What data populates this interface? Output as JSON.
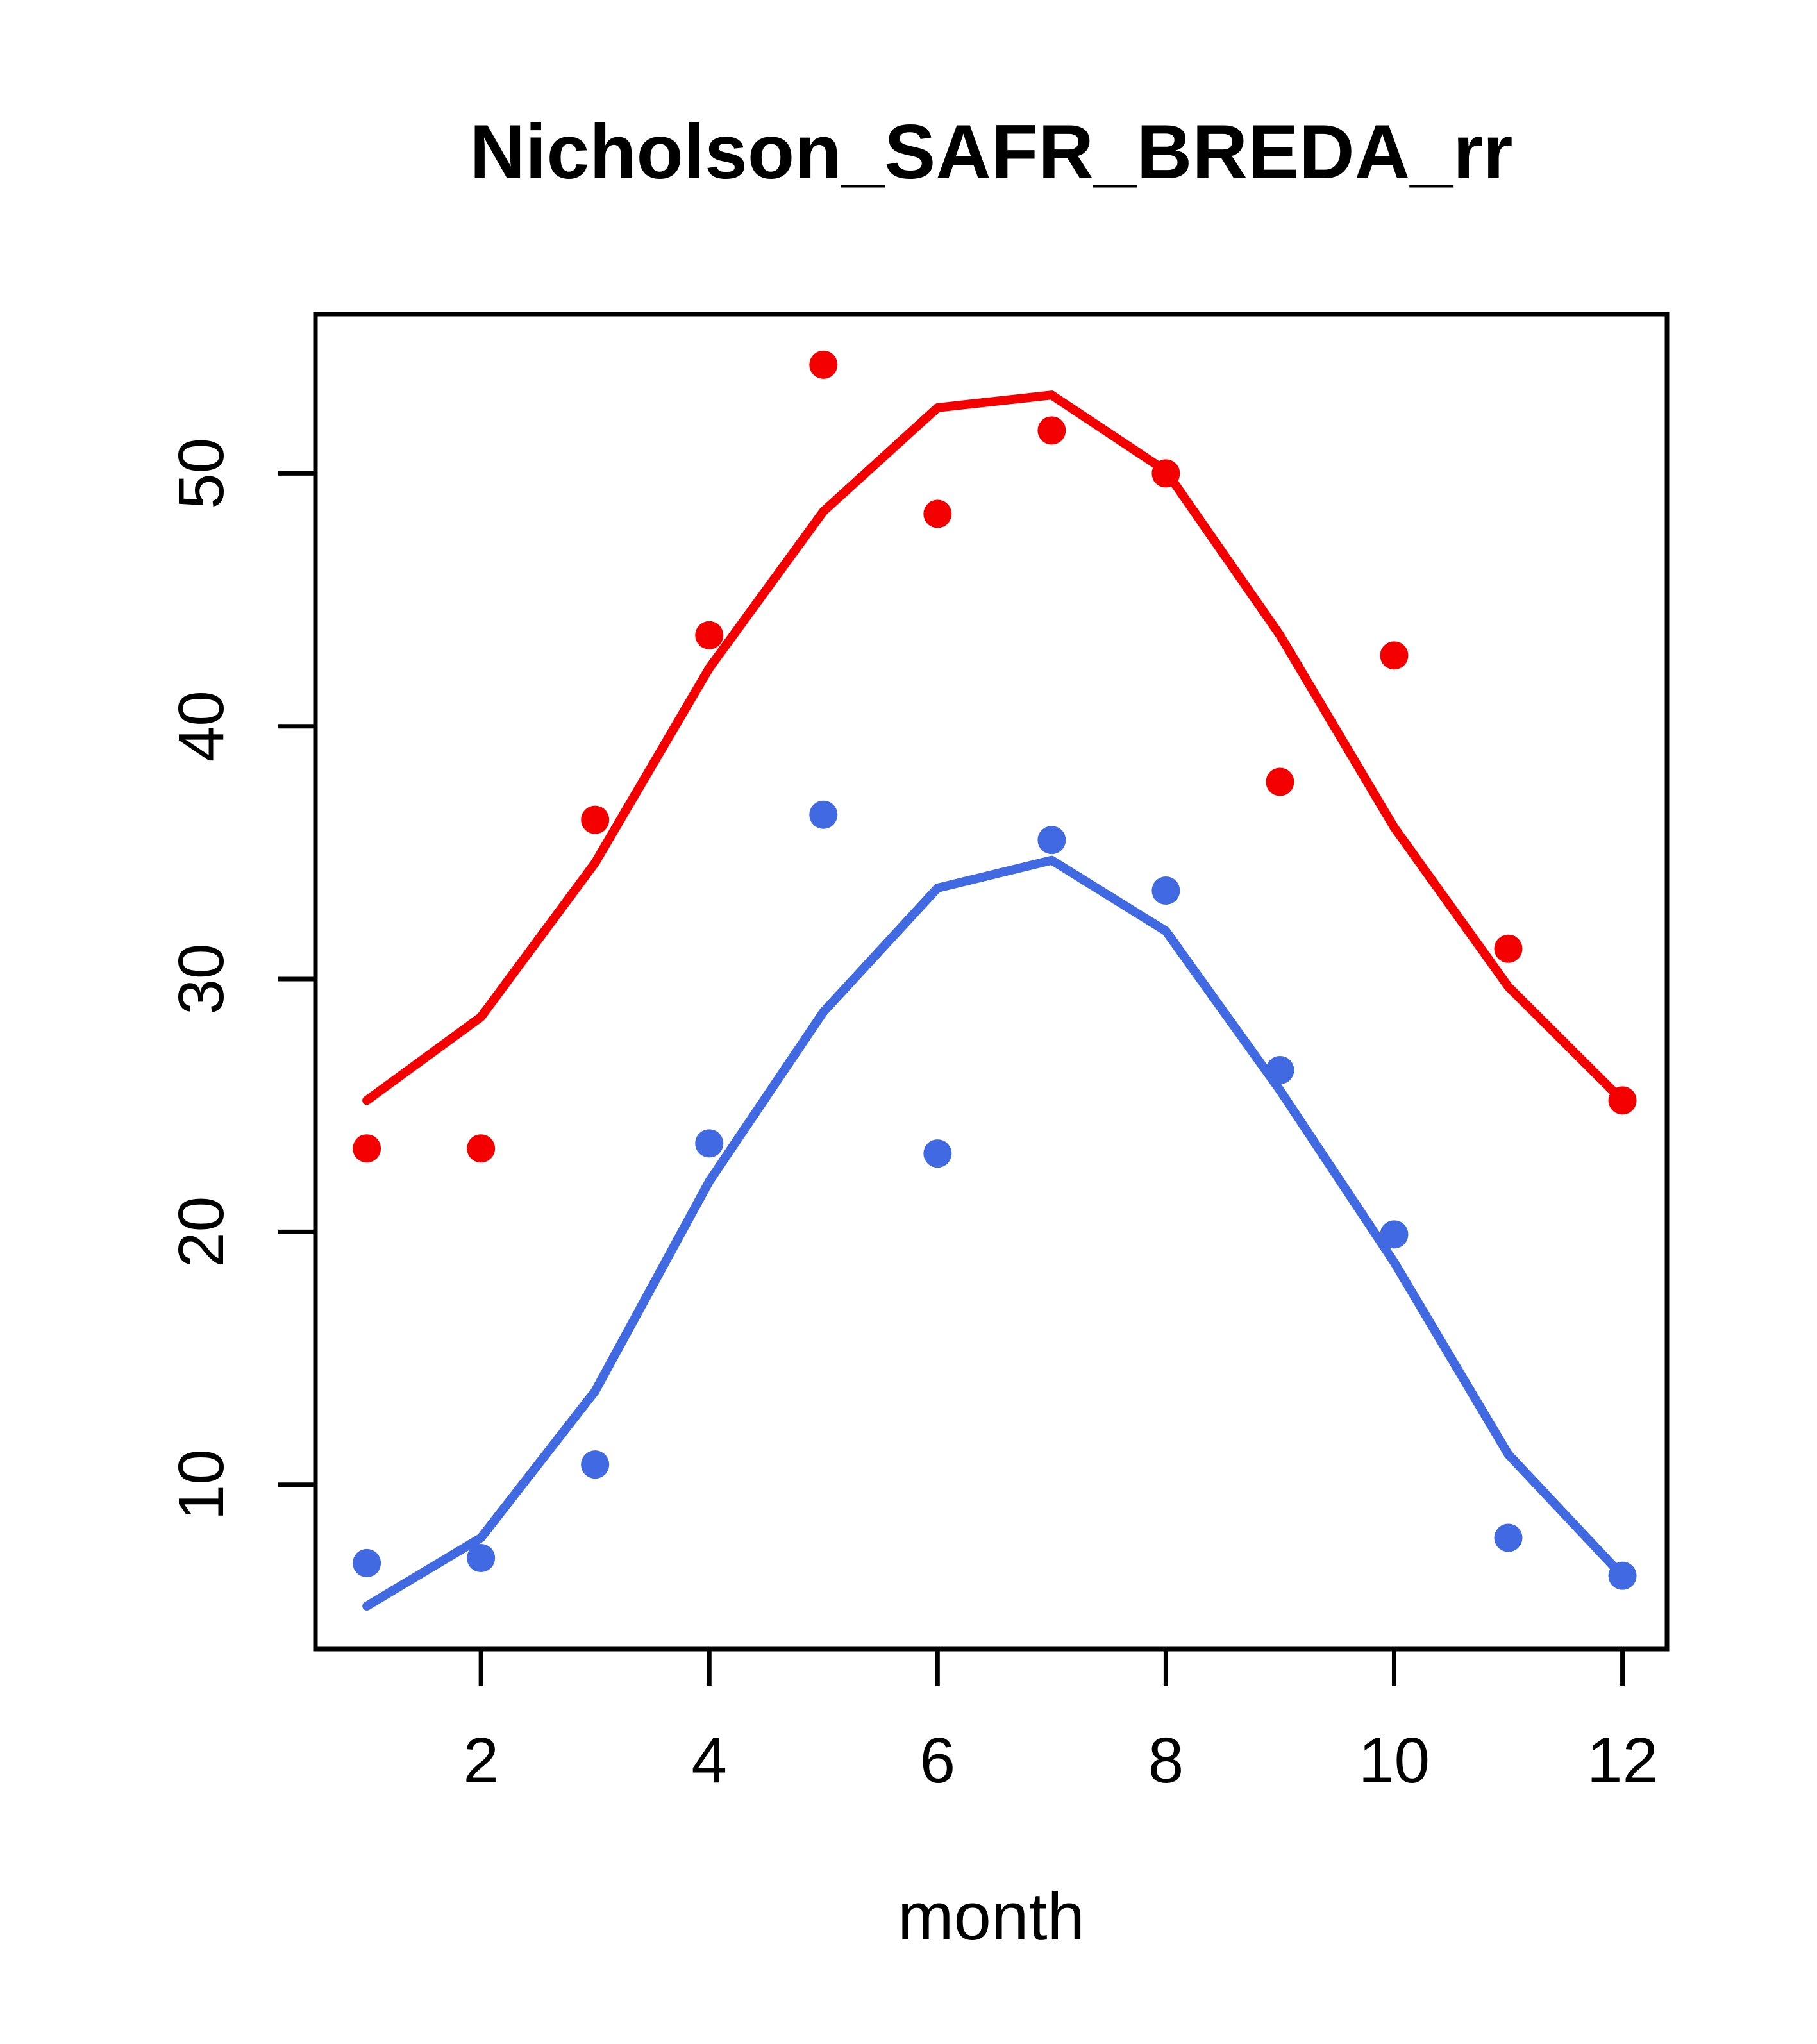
{
  "chart_data": {
    "type": "line",
    "title": "Nicholson_SAFR_BREDA_rr",
    "xlabel": "month",
    "ylabel": "",
    "x": [
      1,
      2,
      3,
      4,
      5,
      6,
      7,
      8,
      9,
      10,
      11,
      12
    ],
    "xticks": [
      2,
      4,
      6,
      8,
      10,
      12
    ],
    "yticks": [
      10,
      20,
      30,
      40,
      50
    ],
    "xlim": [
      0.55,
      12.39
    ],
    "ylim": [
      3.5,
      56.3
    ],
    "grid": false,
    "legend_position": "none",
    "colors": {
      "red": "#f50000",
      "blue": "#4169e1",
      "axis": "#000000"
    },
    "series": [
      {
        "name": "red-fitted-line",
        "style": "line",
        "color": "#f50000",
        "values": [
          25.2,
          28.5,
          34.6,
          42.3,
          48.5,
          52.6,
          53.1,
          50.1,
          43.6,
          36.0,
          29.7,
          25.2
        ]
      },
      {
        "name": "red-observed-points",
        "style": "points",
        "color": "#f50000",
        "values": [
          23.3,
          23.3,
          36.3,
          43.6,
          54.3,
          48.4,
          51.7,
          50.0,
          37.8,
          42.8,
          31.2,
          25.2
        ]
      },
      {
        "name": "blue-fitted-line",
        "style": "line",
        "color": "#4169e1",
        "values": [
          5.2,
          7.9,
          13.7,
          22.0,
          28.7,
          33.6,
          34.7,
          31.9,
          25.6,
          18.8,
          11.2,
          6.4
        ]
      },
      {
        "name": "blue-observed-points",
        "style": "points",
        "color": "#4169e1",
        "values": [
          6.9,
          7.1,
          10.8,
          23.5,
          36.5,
          23.1,
          35.5,
          33.5,
          26.4,
          19.9,
          7.9,
          6.4
        ]
      }
    ]
  }
}
